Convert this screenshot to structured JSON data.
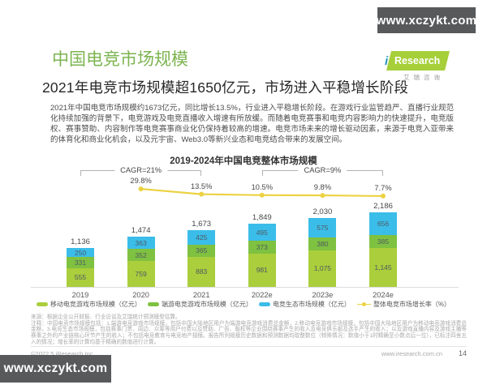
{
  "watermark": {
    "text": "www.xczykt.com"
  },
  "header": {
    "title": "中国电竞市场规模",
    "subtitle": "2021年电竞市场规模超1650亿元，市场进入平稳增长阶段",
    "logo": {
      "i": "i",
      "brand": "Research",
      "cn": "艾瑞咨询"
    }
  },
  "intro": "2021年中国电竞市场规模约1673亿元，同比增长13.5%，行业进入平稳增长阶段。在游戏行业监管趋严、直播行业规范化持续加强的背景下，电竞游戏及电竞直播收入增速有所放缓。而随着电竞赛事和电竞内容影响力的快速提升，电竞版权、赛事赞助、内容制作等电竞赛事商业化仍保持着较高的增速。电竞市场未来的增长驱动因素，来源于电竞入亚带来的体育化和商业化机会，以及元宇宙、Web3.0等新兴业态和电竞结合带来的发展空间。",
  "chart_data": {
    "type": "bar",
    "title": "2019-2024年中国电竞整体市场规模",
    "categories": [
      "2019",
      "2020",
      "2021",
      "2022e",
      "2023e",
      "2024e"
    ],
    "series": [
      {
        "name": "移动电竞游戏市场规模（亿元）",
        "color": "#aace3c",
        "values": [
          555,
          759,
          883,
          981,
          1075,
          1145
        ]
      },
      {
        "name": "端游电竞游戏市场规模（亿元）",
        "color": "#7fc140",
        "values": [
          331,
          352,
          365,
          373,
          380,
          385
        ]
      },
      {
        "name": "电竞生态市场规模（亿元）",
        "color": "#3bbde9",
        "values": [
          250,
          363,
          425,
          495,
          575,
          656
        ]
      }
    ],
    "totals": [
      "1,136",
      "1,474",
      "1,673",
      "1,849",
      "2,030",
      "2,186"
    ],
    "growth_line": {
      "name": "整体电竞市场增长率（%）",
      "color": "#ecd242",
      "x": [
        "2020",
        "2021",
        "2022e",
        "2023e",
        "2024e"
      ],
      "values": [
        29.8,
        13.5,
        10.5,
        9.8,
        7.7
      ],
      "labels": [
        "29.8%",
        "13.5%",
        "10.5%",
        "9.8%",
        "7.7%"
      ]
    },
    "cagr_annotations": [
      {
        "label": "CAGR=21%",
        "from": "2019",
        "to": "2021"
      },
      {
        "label": "CAGR=9%",
        "from": "2022e",
        "to": "2024e"
      }
    ],
    "ylim": [
      0,
      2400
    ],
    "grid": false,
    "legend_position": "bottom",
    "stacked": true
  },
  "footnotes": {
    "source": "来源：根据企业公开财报、行业访谈及艾瑞统计预测模型估算。",
    "note": "注释：中国电竞市场规模包括：1.端游电竞游戏市场规模，包括中国大陆地区用户为端游电竞游戏消费总金额，2.移动电竞游戏市场规模，包括中国大陆地区用户为移动电竞游戏消费总金额，3.电竞生态市场规模，包括赛事门票、周边、众筹等用户付费以及赞助、广告、版权等企业围绕赛事产生的收入及电竞俱乐部及选手产生的收入；以及游戏直播内容及游戏主播等赛事之外的产业链核心环节产生的收入；不包括电竞教育与电竞地产规模。报告所列规模历史数据和预测数据均取整数位（特殊情况：数值小于1时精确至小数点后一位），已标注四舍五入的情况；增长率的计算均基于精确的数值进行计算。"
  },
  "footer": {
    "copyright": "©2022.5 iResearch Inc.",
    "website": "www.iresearch.com.cn",
    "page": "14"
  }
}
